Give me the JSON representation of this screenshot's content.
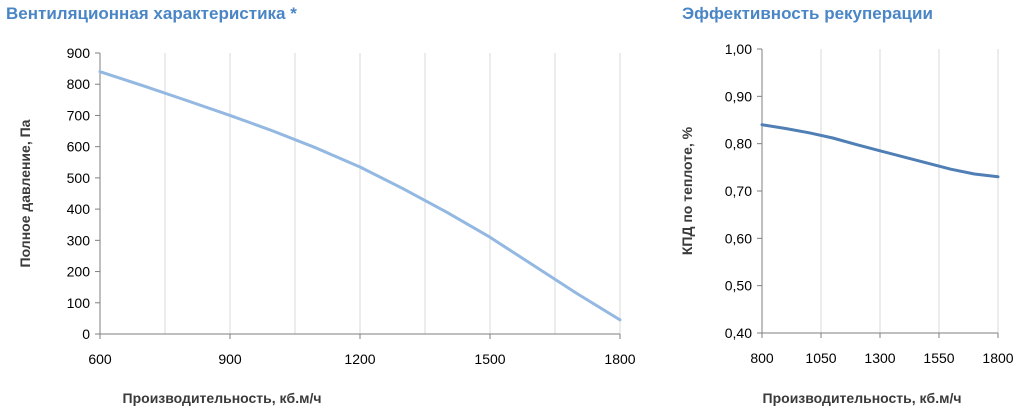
{
  "colors": {
    "title": "#4a86c6",
    "grid": "#d9d9d9",
    "axis": "#7f7f7f"
  },
  "chart_data": [
    {
      "type": "line",
      "title": "Вентиляционная характеристика *",
      "xlabel": "Производительность, кб.м/ч",
      "ylabel": "Полное давление, Па",
      "xlim": [
        600,
        1800
      ],
      "ylim": [
        0,
        900
      ],
      "xticks": [
        "600",
        "900",
        "1200",
        "1500",
        "1800"
      ],
      "yticks": [
        "0",
        "100",
        "200",
        "300",
        "400",
        "500",
        "600",
        "700",
        "800",
        "900"
      ],
      "vgrid_values": [
        600,
        750,
        900,
        1050,
        1200,
        1350,
        1500,
        1650,
        1800
      ],
      "grid": true,
      "series": [
        {
          "color": "#93b8e1",
          "x": [
            600,
            700,
            800,
            900,
            1000,
            1100,
            1200,
            1300,
            1400,
            1500,
            1600,
            1700,
            1800
          ],
          "y": [
            840,
            795,
            748,
            700,
            650,
            595,
            535,
            465,
            390,
            310,
            220,
            130,
            45
          ]
        }
      ]
    },
    {
      "type": "line",
      "title": "Эффективность рекуперации",
      "xlabel": "Производительность, кб.м/ч",
      "ylabel": "КПД по теплоте, %",
      "xlim": [
        800,
        1800
      ],
      "ylim": [
        0.4,
        1.0
      ],
      "xticks": [
        "800",
        "1050",
        "1300",
        "1550",
        "1800"
      ],
      "yticks": [
        "0,40",
        "0,50",
        "0,60",
        "0,70",
        "0,80",
        "0,90",
        "1,00"
      ],
      "vgrid_values": [
        800,
        1050,
        1300,
        1550,
        1800
      ],
      "grid": true,
      "series": [
        {
          "color": "#4f7fb5",
          "x": [
            800,
            900,
            1000,
            1100,
            1200,
            1300,
            1400,
            1500,
            1600,
            1700,
            1800
          ],
          "y": [
            0.84,
            0.832,
            0.823,
            0.812,
            0.798,
            0.785,
            0.772,
            0.759,
            0.746,
            0.736,
            0.73
          ]
        }
      ]
    }
  ]
}
